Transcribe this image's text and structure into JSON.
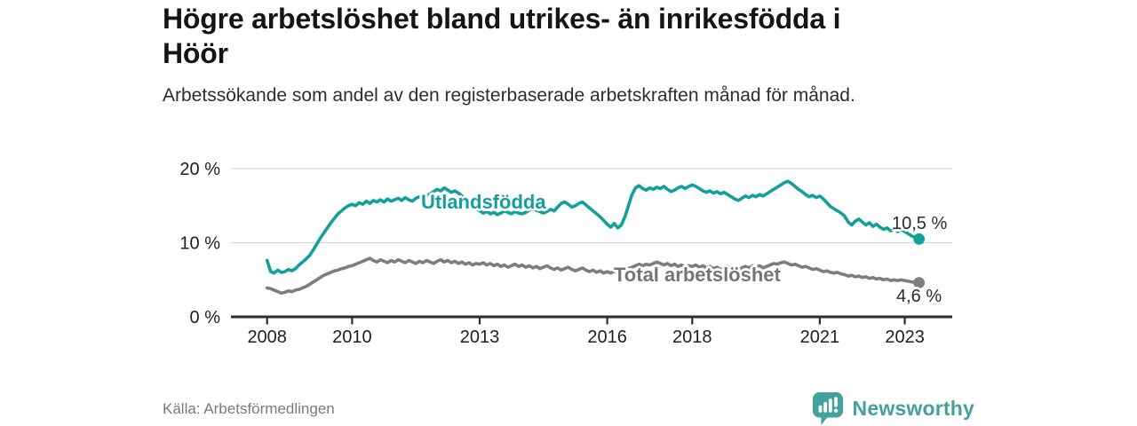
{
  "header": {
    "title": "Högre arbetslöshet bland utrikes- än inrikesfödda i Höör",
    "subtitle": "Arbetssökande som andel av den registerbaserade arbetskraften månad för månad."
  },
  "footer": {
    "source": "Källa: Arbetsförmedlingen",
    "brand": "Newsworthy"
  },
  "colors": {
    "foreign": "#12a19a",
    "total": "#7d7d7d",
    "label_total": "#757575",
    "axis": "#2d2d2d",
    "grid": "#d9d9d9",
    "brand": "#45a19b"
  },
  "chart_data": {
    "type": "line",
    "title": "",
    "xlabel": "",
    "ylabel": "",
    "ylim": [
      0,
      20
    ],
    "xlim": [
      2007.2,
      2024.1
    ],
    "grid": "horizontal",
    "legend": "inline-labels",
    "x_start": 2008.0,
    "x_step_years": 0.0833333,
    "yticks": [
      {
        "value": 0,
        "label": "0 %"
      },
      {
        "value": 10,
        "label": "10 %"
      },
      {
        "value": 20,
        "label": "20 %"
      }
    ],
    "xticks": [
      {
        "value": 2008,
        "label": "2008"
      },
      {
        "value": 2010,
        "label": "2010"
      },
      {
        "value": 2013,
        "label": "2013"
      },
      {
        "value": 2016,
        "label": "2016"
      },
      {
        "value": 2018,
        "label": "2018"
      },
      {
        "value": 2021,
        "label": "2021"
      },
      {
        "value": 2023,
        "label": "2023"
      }
    ],
    "series": [
      {
        "name": "Utlandsfödda",
        "color_key": "foreign",
        "end_label": "10,5 %",
        "values": [
          7.6,
          6.1,
          5.9,
          6.3,
          6.0,
          6.1,
          6.4,
          6.2,
          6.5,
          7.0,
          7.4,
          7.8,
          8.3,
          9.0,
          9.8,
          10.6,
          11.3,
          12.0,
          12.7,
          13.3,
          13.9,
          14.3,
          14.7,
          15.0,
          15.2,
          15.0,
          15.4,
          15.2,
          15.6,
          15.3,
          15.7,
          15.5,
          15.8,
          15.5,
          15.9,
          15.6,
          15.8,
          16.0,
          15.7,
          16.1,
          15.8,
          15.6,
          16.0,
          16.2,
          15.9,
          16.3,
          16.6,
          16.9,
          17.2,
          17.0,
          17.4,
          17.1,
          16.8,
          17.0,
          16.7,
          16.3,
          15.9,
          15.5,
          15.0,
          14.6,
          14.3,
          14.0,
          14.2,
          13.9,
          14.1,
          13.8,
          14.0,
          14.3,
          14.1,
          13.9,
          14.2,
          14.0,
          13.9,
          14.1,
          14.4,
          14.7,
          14.4,
          14.2,
          14.0,
          14.2,
          14.5,
          14.3,
          14.8,
          15.3,
          15.5,
          15.2,
          14.8,
          15.0,
          15.3,
          15.5,
          15.1,
          14.7,
          14.3,
          13.9,
          13.5,
          13.0,
          12.5,
          12.1,
          12.6,
          12.0,
          12.4,
          13.5,
          15.0,
          16.5,
          17.4,
          17.7,
          17.3,
          17.1,
          17.4,
          17.2,
          17.5,
          17.3,
          17.6,
          17.2,
          16.9,
          17.1,
          17.4,
          17.6,
          17.3,
          17.6,
          17.8,
          17.6,
          17.3,
          17.0,
          16.8,
          17.0,
          16.7,
          16.9,
          16.6,
          16.8,
          16.5,
          16.2,
          15.9,
          15.7,
          16.0,
          16.3,
          16.1,
          16.4,
          16.2,
          16.5,
          16.3,
          16.6,
          16.9,
          17.2,
          17.5,
          17.8,
          18.1,
          18.3,
          18.0,
          17.6,
          17.2,
          16.9,
          16.5,
          16.2,
          16.4,
          16.1,
          16.3,
          15.9,
          15.4,
          14.9,
          14.6,
          14.3,
          14.0,
          13.6,
          12.8,
          12.4,
          12.9,
          13.2,
          12.8,
          12.4,
          12.7,
          12.2,
          12.5,
          12.1,
          11.8,
          12.0,
          11.6,
          11.9,
          11.5,
          11.8,
          11.5,
          11.2,
          10.9,
          10.7,
          10.5
        ]
      },
      {
        "name": "Total arbetslöshet",
        "color_key": "total",
        "end_label": "4,6 %",
        "values": [
          3.9,
          3.8,
          3.6,
          3.4,
          3.2,
          3.3,
          3.5,
          3.4,
          3.6,
          3.7,
          3.9,
          4.1,
          4.4,
          4.7,
          5.0,
          5.3,
          5.6,
          5.8,
          6.0,
          6.2,
          6.3,
          6.5,
          6.6,
          6.8,
          6.9,
          7.1,
          7.3,
          7.5,
          7.7,
          7.9,
          7.6,
          7.4,
          7.7,
          7.5,
          7.3,
          7.6,
          7.4,
          7.7,
          7.5,
          7.3,
          7.6,
          7.4,
          7.2,
          7.5,
          7.3,
          7.6,
          7.4,
          7.2,
          7.5,
          7.7,
          7.4,
          7.6,
          7.3,
          7.5,
          7.2,
          7.4,
          7.1,
          7.3,
          7.0,
          7.2,
          7.1,
          7.3,
          7.0,
          7.2,
          6.9,
          7.1,
          6.8,
          7.0,
          6.7,
          6.9,
          7.1,
          6.8,
          7.0,
          6.7,
          6.9,
          6.6,
          6.8,
          6.5,
          6.7,
          6.9,
          6.6,
          6.4,
          6.6,
          6.3,
          6.5,
          6.7,
          6.4,
          6.2,
          6.4,
          6.6,
          6.3,
          6.1,
          6.3,
          6.0,
          6.2,
          5.9,
          6.1,
          5.9,
          6.2,
          5.9,
          6.1,
          6.3,
          6.5,
          6.7,
          6.9,
          7.1,
          6.9,
          7.1,
          7.0,
          7.2,
          7.4,
          7.2,
          7.0,
          7.2,
          6.9,
          7.1,
          6.8,
          7.0,
          6.7,
          6.9,
          6.8,
          7.0,
          6.7,
          6.9,
          6.6,
          6.8,
          6.5,
          6.7,
          6.4,
          6.6,
          6.8,
          6.5,
          6.7,
          6.4,
          6.6,
          6.8,
          6.6,
          6.9,
          6.7,
          6.9,
          6.6,
          6.8,
          7.0,
          7.2,
          7.1,
          7.3,
          7.4,
          7.2,
          7.0,
          7.1,
          6.9,
          6.7,
          6.8,
          6.6,
          6.4,
          6.5,
          6.3,
          6.1,
          6.2,
          6.0,
          5.9,
          6.0,
          5.8,
          5.7,
          5.5,
          5.6,
          5.4,
          5.5,
          5.3,
          5.4,
          5.2,
          5.3,
          5.1,
          5.2,
          5.0,
          5.1,
          4.9,
          5.0,
          4.9,
          5.0,
          4.9,
          4.8,
          4.7,
          4.7,
          4.6
        ]
      }
    ]
  }
}
